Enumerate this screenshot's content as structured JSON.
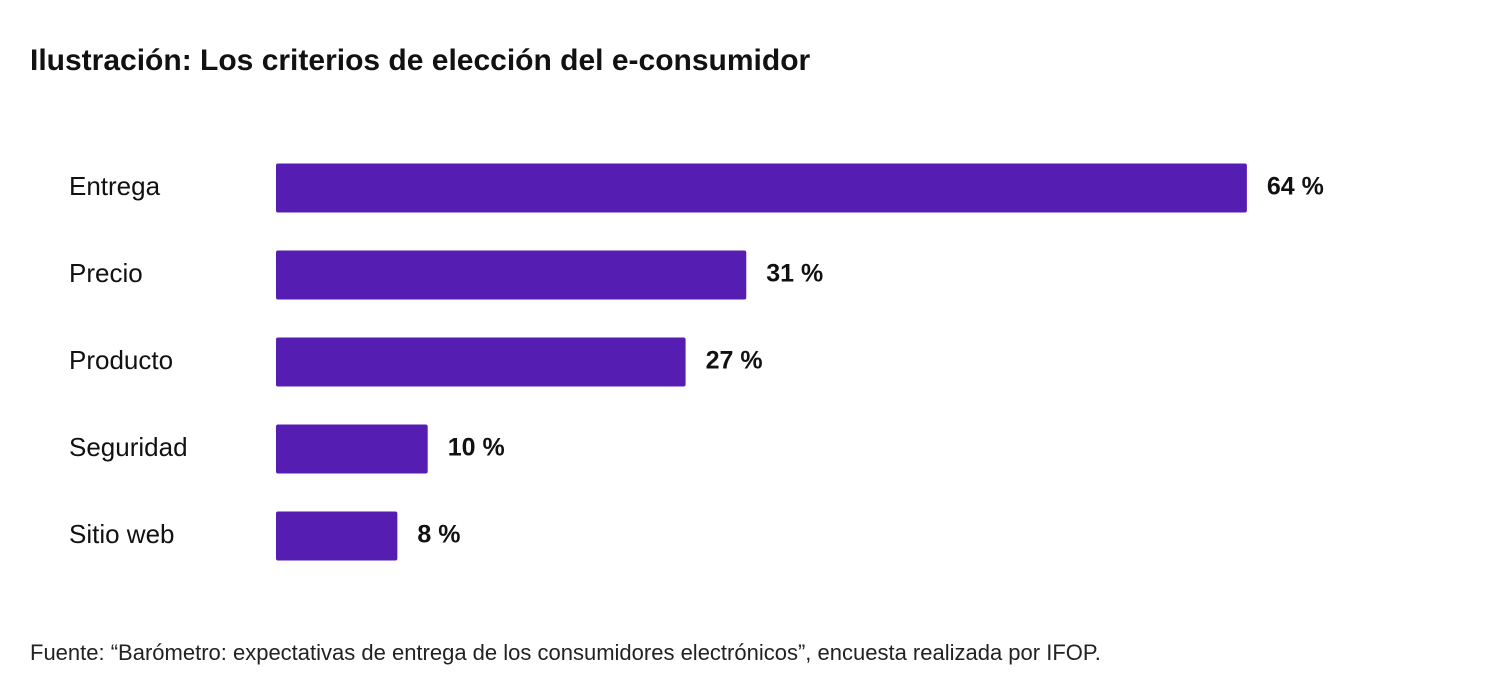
{
  "chart_data": {
    "type": "hbar",
    "title": "Ilustración: Los criterios de elección del e-consumidor",
    "categories": [
      "Entrega",
      "Precio",
      "Producto",
      "Seguridad",
      "Sitio web"
    ],
    "values": [
      64,
      31,
      27,
      10,
      8
    ],
    "value_labels": [
      "64 %",
      "31 %",
      "27 %",
      "10 %",
      "8 %"
    ],
    "color": "#561db3",
    "source": "Fuente: “Barómetro: expectativas de entrega de los consumidores electrónicos”, encuesta realizada por IFOP."
  }
}
